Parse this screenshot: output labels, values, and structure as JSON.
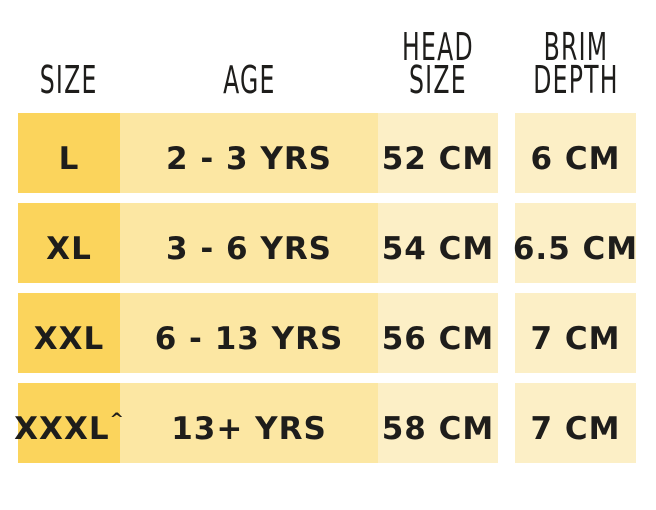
{
  "colors": {
    "size_col": "#fbd45c",
    "age_col": "#fce7a3",
    "value_col": "#fcefc6",
    "text": "#1e1d1b",
    "background": "#ffffff"
  },
  "table": {
    "headers": {
      "size": "SIZE",
      "age": "AGE",
      "head_size": "HEAD\nSIZE",
      "brim_depth": "BRIM\nDEPTH"
    },
    "rows": [
      {
        "size": "L",
        "size_suffix": "",
        "age": "2 - 3 YRS",
        "head_size": "52 CM",
        "brim_depth": "6 CM"
      },
      {
        "size": "XL",
        "size_suffix": "",
        "age": "3 - 6 YRS",
        "head_size": "54 CM",
        "brim_depth": "6.5 CM"
      },
      {
        "size": "XXL",
        "size_suffix": "",
        "age": "6 - 13 YRS",
        "head_size": "56 CM",
        "brim_depth": "7 CM"
      },
      {
        "size": "XXXL",
        "size_suffix": "^",
        "age": "13+ YRS",
        "head_size": "58 CM",
        "brim_depth": "7 CM"
      }
    ]
  },
  "chart_data": {
    "type": "table",
    "columns": [
      "SIZE",
      "AGE",
      "HEAD SIZE",
      "BRIM DEPTH"
    ],
    "rows": [
      [
        "L",
        "2 - 3 YRS",
        "52 CM",
        "6 CM"
      ],
      [
        "XL",
        "3 - 6 YRS",
        "54 CM",
        "6.5 CM"
      ],
      [
        "XXL",
        "6 - 13 YRS",
        "56 CM",
        "7 CM"
      ],
      [
        "XXXL^",
        "13+ YRS",
        "58 CM",
        "7 CM"
      ]
    ]
  }
}
